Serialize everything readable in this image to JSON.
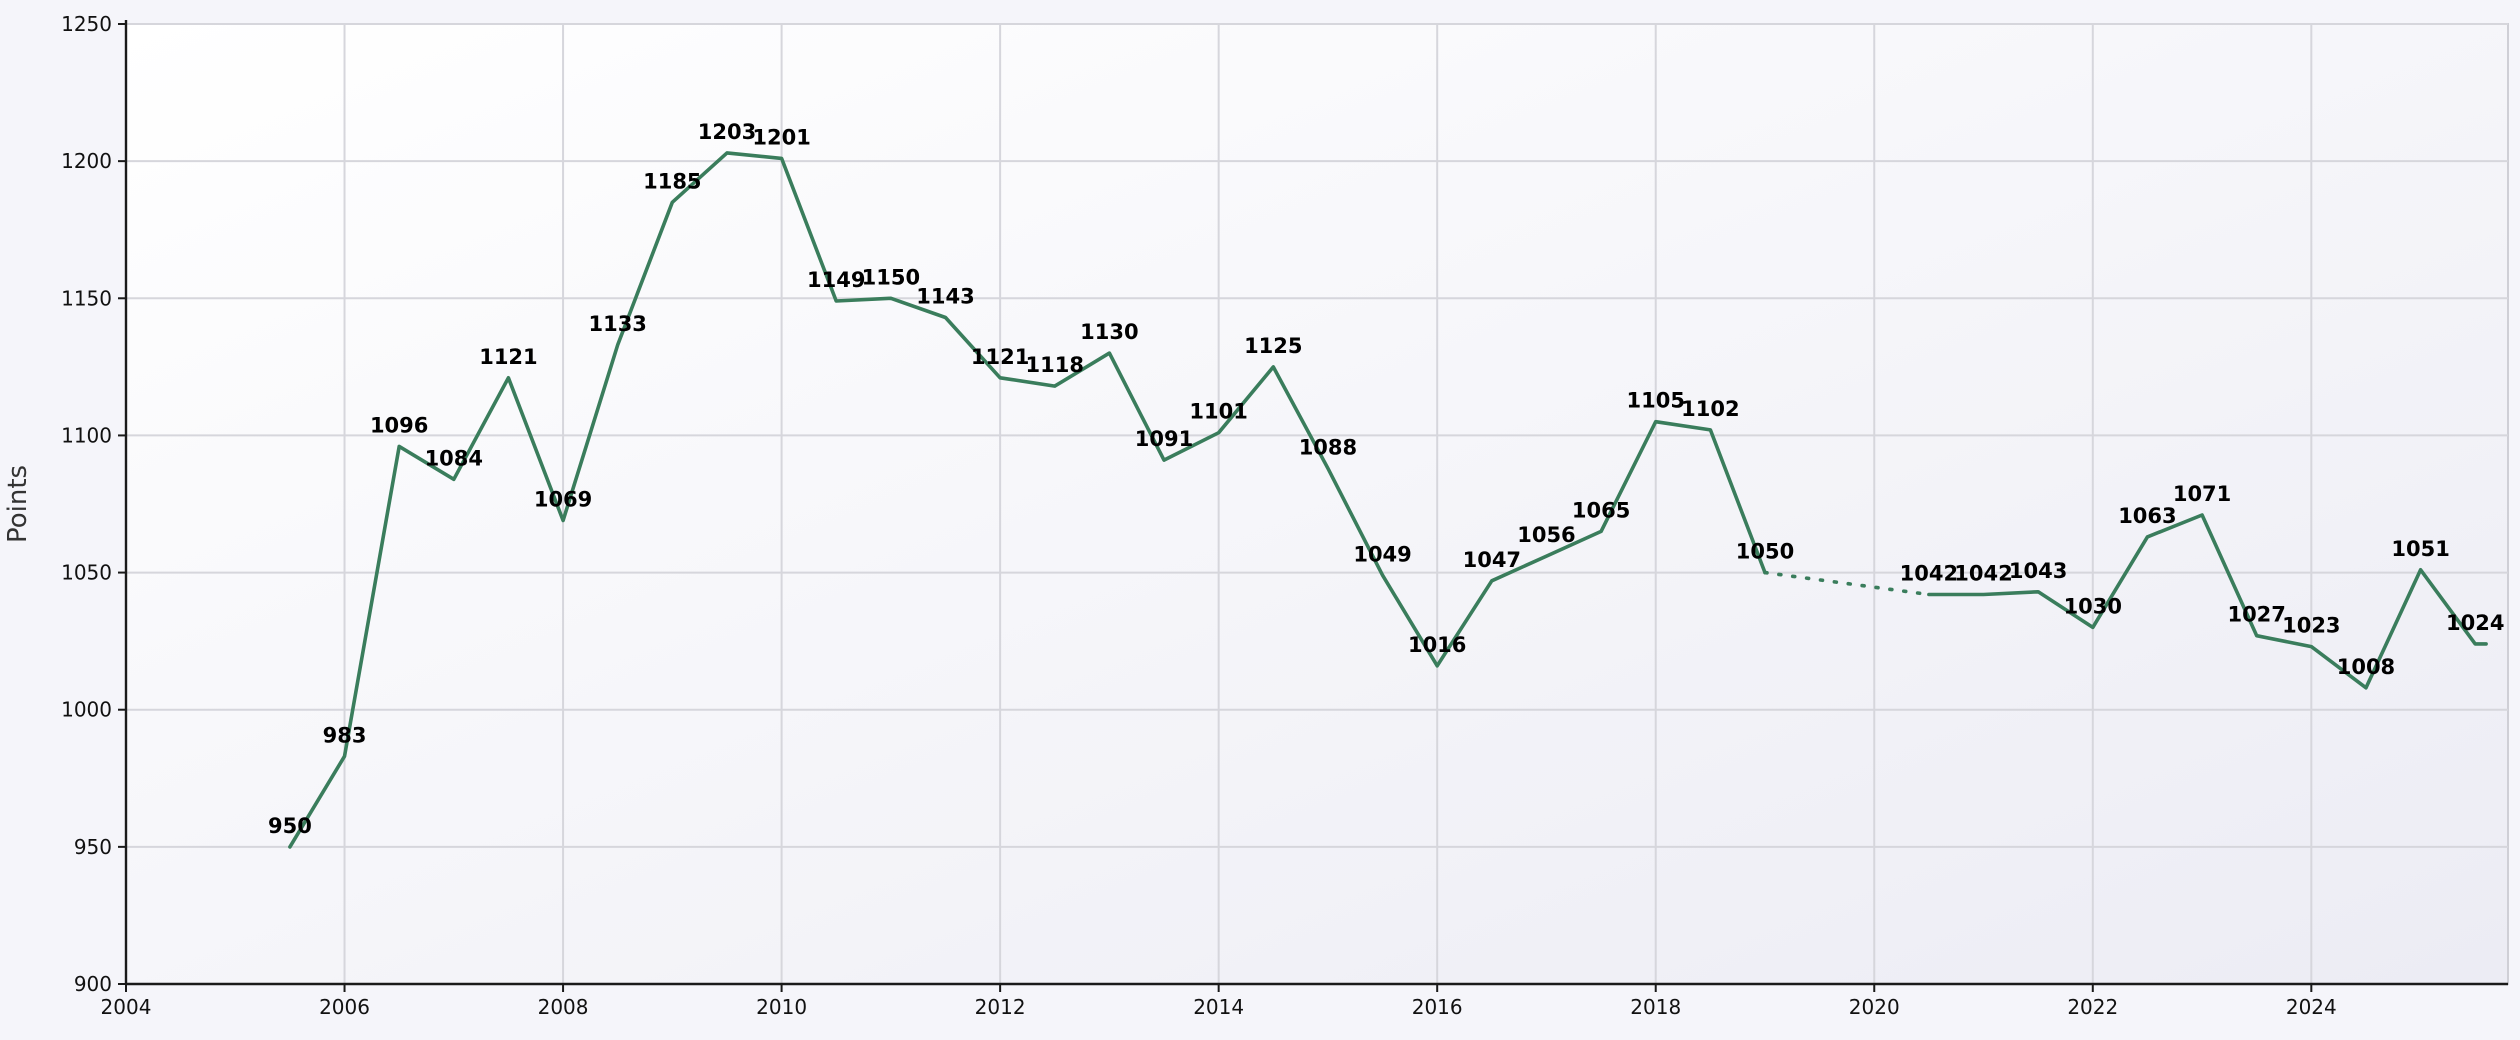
{
  "chart_data": {
    "type": "line",
    "title": "",
    "xlabel": "",
    "ylabel": "Points",
    "xlim": [
      2004,
      2025.8
    ],
    "ylim": [
      900,
      1250
    ],
    "x_ticks": [
      "2004",
      "2006",
      "2008",
      "2010",
      "2012",
      "2014",
      "2016",
      "2018",
      "2020",
      "2022",
      "2024"
    ],
    "y_ticks": [
      "900",
      "950",
      "1000",
      "1050",
      "1100",
      "1150",
      "1200",
      "1250"
    ],
    "grid": true,
    "legend": "none",
    "line_color": "#3a7d5c",
    "series": [
      {
        "points": [
          {
            "x": 2005.5,
            "y": 950
          },
          {
            "x": 2006.0,
            "y": 983
          },
          {
            "x": 2006.5,
            "y": 1096
          },
          {
            "x": 2007.0,
            "y": 1084
          },
          {
            "x": 2007.5,
            "y": 1121
          },
          {
            "x": 2008.0,
            "y": 1069
          },
          {
            "x": 2008.5,
            "y": 1133
          },
          {
            "x": 2009.0,
            "y": 1185
          },
          {
            "x": 2009.5,
            "y": 1203
          },
          {
            "x": 2010.0,
            "y": 1201
          },
          {
            "x": 2010.5,
            "y": 1149
          },
          {
            "x": 2011.0,
            "y": 1150
          },
          {
            "x": 2011.5,
            "y": 1143
          },
          {
            "x": 2012.0,
            "y": 1121
          },
          {
            "x": 2012.5,
            "y": 1118
          },
          {
            "x": 2013.0,
            "y": 1130
          },
          {
            "x": 2013.5,
            "y": 1091
          },
          {
            "x": 2014.0,
            "y": 1101
          },
          {
            "x": 2014.5,
            "y": 1125
          },
          {
            "x": 2015.0,
            "y": 1088
          },
          {
            "x": 2015.5,
            "y": 1049
          },
          {
            "x": 2016.0,
            "y": 1016
          },
          {
            "x": 2016.5,
            "y": 1047
          },
          {
            "x": 2017.0,
            "y": 1056
          },
          {
            "x": 2017.5,
            "y": 1065
          },
          {
            "x": 2018.0,
            "y": 1105
          },
          {
            "x": 2018.5,
            "y": 1102
          },
          {
            "x": 2019.0,
            "y": 1050
          },
          {
            "x": 2020.5,
            "y": 1042
          },
          {
            "x": 2021.0,
            "y": 1042
          },
          {
            "x": 2021.5,
            "y": 1043
          },
          {
            "x": 2022.0,
            "y": 1030
          },
          {
            "x": 2022.5,
            "y": 1063
          },
          {
            "x": 2023.0,
            "y": 1071
          },
          {
            "x": 2023.5,
            "y": 1027
          },
          {
            "x": 2024.0,
            "y": 1023
          },
          {
            "x": 2024.5,
            "y": 1008
          },
          {
            "x": 2025.0,
            "y": 1051
          },
          {
            "x": 2025.5,
            "y": 1024
          },
          {
            "x": 2025.6,
            "y": 1024
          }
        ],
        "labels": [
          "950",
          "983",
          "1096",
          "1084",
          "1121",
          "1069",
          "1133",
          "1185",
          "1203",
          "1201",
          "1149",
          "1150",
          "1143",
          "1121",
          "1118",
          "1130",
          "1091",
          "1101",
          "1125",
          "1088",
          "1049",
          "1016",
          "1047",
          "1056",
          "1065",
          "1105",
          "1102",
          "1050",
          "1042",
          "1042",
          "1043",
          "1030",
          "1063",
          "1071",
          "1027",
          "1023",
          "1008",
          "1051",
          "1024",
          ""
        ],
        "gap_after_x": 2019.0
      }
    ]
  }
}
